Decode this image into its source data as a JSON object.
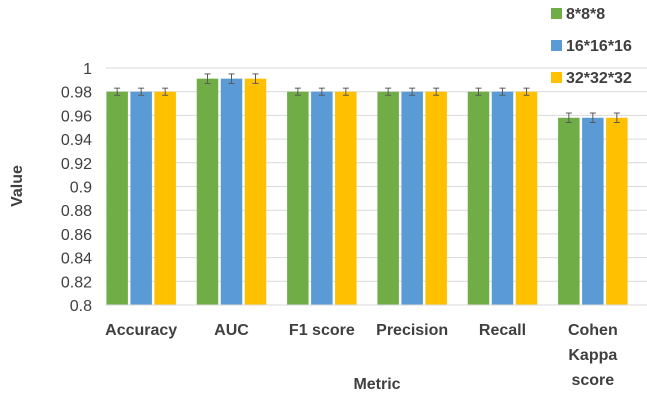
{
  "chart_data": {
    "type": "bar",
    "title": "",
    "xlabel": "Metric",
    "ylabel": "Value",
    "categories": [
      "Accuracy",
      "AUC",
      "F1 score",
      "Precision",
      "Recall",
      "Cohen Kappa score"
    ],
    "series": [
      {
        "name": "8*8*8",
        "values": [
          0.98,
          0.991,
          0.98,
          0.98,
          0.98,
          0.958
        ],
        "error": [
          0.003,
          0.004,
          0.003,
          0.003,
          0.003,
          0.004
        ],
        "color": "#70ad47"
      },
      {
        "name": "16*16*16",
        "values": [
          0.98,
          0.991,
          0.98,
          0.98,
          0.98,
          0.958
        ],
        "error": [
          0.003,
          0.004,
          0.003,
          0.003,
          0.003,
          0.004
        ],
        "color": "#5b9bd5"
      },
      {
        "name": "32*32*32",
        "values": [
          0.98,
          0.991,
          0.98,
          0.98,
          0.98,
          0.958
        ],
        "error": [
          0.003,
          0.004,
          0.003,
          0.003,
          0.003,
          0.004
        ],
        "color": "#ffc000"
      }
    ],
    "ylim": [
      0.8,
      1.0
    ],
    "yticks": [
      0.8,
      0.82,
      0.84,
      0.86,
      0.88,
      0.9,
      0.92,
      0.94,
      0.96,
      0.98,
      1
    ],
    "ytick_labels": [
      "0.8",
      "0.82",
      "0.84",
      "0.86",
      "0.88",
      "0.9",
      "0.92",
      "0.94",
      "0.96",
      "0.98",
      "1"
    ],
    "grid": true,
    "legend_position": "top-right"
  }
}
